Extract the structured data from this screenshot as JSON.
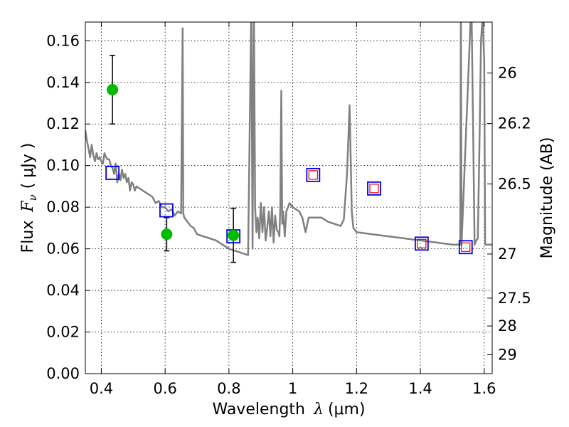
{
  "chart_data": {
    "type": "scatter",
    "xlabel_prefix": "Wavelength",
    "xlabel_symbol": "λ",
    "xlabel_unit": "(μm)",
    "ylabel_prefix": "Flux",
    "ylabel_symbol": "F",
    "ylabel_symbol_sub": "ν",
    "ylabel_unit": "( μJy )",
    "y2label": "Magnitude (AB)",
    "xlim": [
      0.35,
      1.625
    ],
    "ylim": [
      0.0,
      0.169
    ],
    "grid": true,
    "xticks": [
      0.4,
      0.6,
      0.8,
      1.0,
      1.2,
      1.4,
      1.6
    ],
    "xtick_labels": [
      "0.4",
      "0.6",
      "0.8",
      "1",
      "1.2",
      "1.4",
      "1.6"
    ],
    "yticks": [
      0.0,
      0.02,
      0.04,
      0.06,
      0.08,
      0.1,
      0.12,
      0.14,
      0.16
    ],
    "ytick_labels": [
      "0.00",
      "0.02",
      "0.04",
      "0.06",
      "0.08",
      "0.10",
      "0.12",
      "0.14",
      "0.16"
    ],
    "y2ticks": [
      {
        "label": "26",
        "flux": 0.1445
      },
      {
        "label": "26.2",
        "flux": 0.1202
      },
      {
        "label": "26.5",
        "flux": 0.0912
      },
      {
        "label": "27",
        "flux": 0.0575
      },
      {
        "label": "27.5",
        "flux": 0.0363
      },
      {
        "label": "28",
        "flux": 0.0229
      },
      {
        "label": "29",
        "flux": 0.0091
      }
    ],
    "series": [
      {
        "kind": "model_spectrum",
        "color": "#808080",
        "x": [
          0.35,
          0.355,
          0.36,
          0.365,
          0.37,
          0.375,
          0.38,
          0.385,
          0.39,
          0.395,
          0.4,
          0.405,
          0.41,
          0.415,
          0.42,
          0.425,
          0.43,
          0.435,
          0.44,
          0.445,
          0.45,
          0.455,
          0.46,
          0.465,
          0.47,
          0.475,
          0.48,
          0.485,
          0.49,
          0.495,
          0.5,
          0.505,
          0.51,
          0.52,
          0.53,
          0.54,
          0.55,
          0.56,
          0.57,
          0.58,
          0.59,
          0.6,
          0.61,
          0.62,
          0.63,
          0.64,
          0.65,
          0.655,
          0.657,
          0.66,
          0.665,
          0.67,
          0.68,
          0.69,
          0.7,
          0.72,
          0.74,
          0.76,
          0.78,
          0.8,
          0.82,
          0.84,
          0.86,
          0.87,
          0.874,
          0.878,
          0.882,
          0.886,
          0.89,
          0.895,
          0.9,
          0.905,
          0.91,
          0.915,
          0.92,
          0.925,
          0.93,
          0.935,
          0.94,
          0.945,
          0.95,
          0.955,
          0.958,
          0.961,
          0.964,
          0.967,
          0.97,
          0.975,
          0.98,
          0.99,
          1.0,
          1.01,
          1.02,
          1.03,
          1.04,
          1.05,
          1.07,
          1.09,
          1.11,
          1.13,
          1.15,
          1.16,
          1.17,
          1.178,
          1.185,
          1.19,
          1.2,
          1.25,
          1.3,
          1.35,
          1.4,
          1.45,
          1.5,
          1.525,
          1.527,
          1.529,
          1.56,
          1.57,
          1.575,
          1.58,
          1.585,
          1.59,
          1.595,
          1.6,
          1.603,
          1.61,
          1.625
        ],
        "y": [
          0.117,
          0.112,
          0.108,
          0.104,
          0.11,
          0.105,
          0.102,
          0.106,
          0.103,
          0.104,
          0.102,
          0.101,
          0.106,
          0.104,
          0.103,
          0.103,
          0.1,
          0.099,
          0.096,
          0.101,
          0.092,
          0.096,
          0.093,
          0.098,
          0.094,
          0.096,
          0.092,
          0.094,
          0.088,
          0.092,
          0.091,
          0.088,
          0.09,
          0.089,
          0.088,
          0.087,
          0.086,
          0.085,
          0.082,
          0.083,
          0.08,
          0.08,
          0.078,
          0.079,
          0.076,
          0.078,
          0.077,
          0.166,
          0.077,
          0.075,
          0.074,
          0.073,
          0.071,
          0.07,
          0.067,
          0.066,
          0.065,
          0.064,
          0.062,
          0.06,
          0.059,
          0.058,
          0.057,
          0.176,
          0.06,
          0.18,
          0.08,
          0.068,
          0.075,
          0.065,
          0.082,
          0.068,
          0.08,
          0.064,
          0.07,
          0.078,
          0.066,
          0.08,
          0.063,
          0.076,
          0.069,
          0.068,
          0.066,
          0.08,
          0.136,
          0.072,
          0.078,
          0.066,
          0.078,
          0.082,
          0.08,
          0.079,
          0.078,
          0.075,
          0.068,
          0.075,
          0.075,
          0.075,
          0.073,
          0.072,
          0.071,
          0.074,
          0.096,
          0.129,
          0.078,
          0.07,
          0.068,
          0.067,
          0.066,
          0.065,
          0.064,
          0.063,
          0.062,
          0.062,
          0.18,
          0.062,
          0.18,
          0.062,
          0.064,
          0.065,
          0.11,
          0.16,
          0.172,
          0.15,
          0.062,
          0.062,
          0.062
        ]
      },
      {
        "kind": "observed_points",
        "color": "#00bb00",
        "points": [
          {
            "x": 0.435,
            "y": 0.1365,
            "err": 0.0165
          },
          {
            "x": 0.605,
            "y": 0.067,
            "err": 0.008
          },
          {
            "x": 0.814,
            "y": 0.0665,
            "err": 0.013
          }
        ]
      },
      {
        "kind": "synthetic_blue_squares",
        "color": "#0000ee",
        "points": [
          {
            "x": 0.435,
            "y": 0.0965
          },
          {
            "x": 0.604,
            "y": 0.0785
          },
          {
            "x": 0.814,
            "y": 0.066
          },
          {
            "x": 1.064,
            "y": 0.0955
          },
          {
            "x": 1.255,
            "y": 0.089
          },
          {
            "x": 1.404,
            "y": 0.0625
          },
          {
            "x": 1.542,
            "y": 0.0608
          }
        ]
      },
      {
        "kind": "synthetic_red_squares",
        "color": "#ee0000",
        "points": [
          {
            "x": 1.064,
            "y": 0.0955
          },
          {
            "x": 1.255,
            "y": 0.089
          },
          {
            "x": 1.404,
            "y": 0.0625
          },
          {
            "x": 1.542,
            "y": 0.0608
          }
        ]
      }
    ]
  }
}
